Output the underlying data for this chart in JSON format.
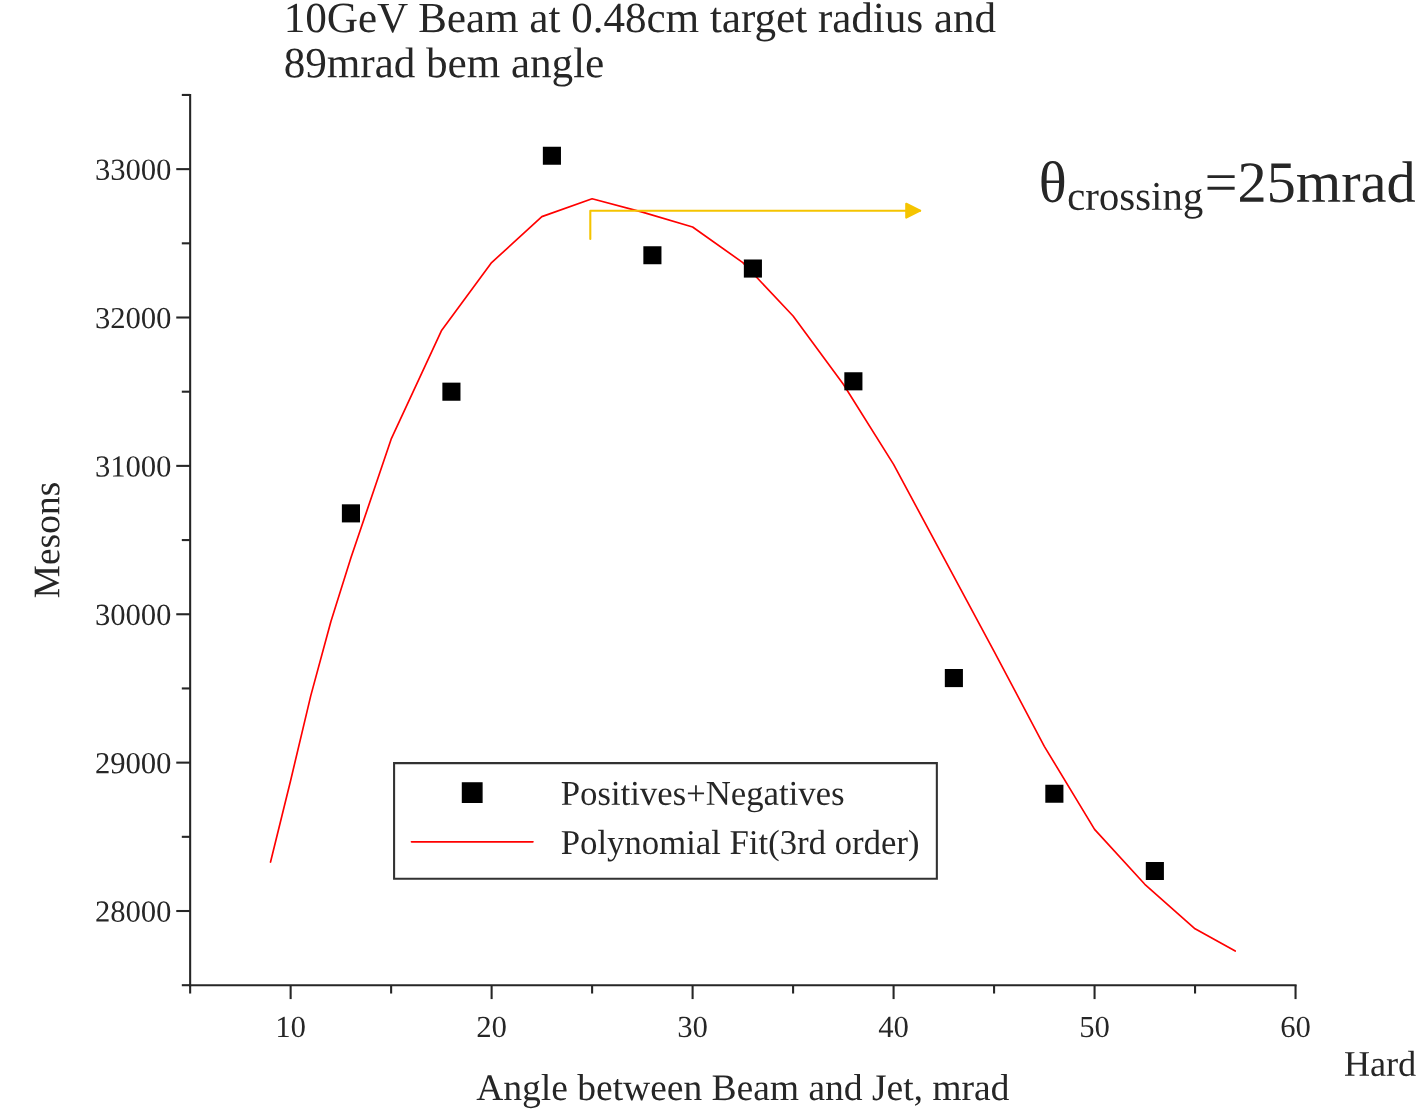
{
  "chart_data": {
    "type": "scatter",
    "title": "10GeV Beam at 0.48cm target radius and\n89mrad bem angle",
    "xlabel": "Angle between Beam and Jet, mrad",
    "ylabel": "Mesons",
    "x": [
      13,
      18,
      23,
      28,
      33,
      38,
      43,
      48,
      53
    ],
    "series": [
      {
        "name": "Positives+Negatives",
        "color": "#000000",
        "marker": "square",
        "values": [
          30680,
          31500,
          33090,
          32420,
          32330,
          31570,
          29570,
          28790,
          28270
        ]
      },
      {
        "name": "Polynomial Fit(3rd order)",
        "type": "line",
        "color": "#ff0000",
        "x": [
          9,
          10,
          11,
          12,
          13,
          15,
          17.5,
          20,
          22.5,
          25,
          27.5,
          30,
          32.5,
          35,
          37.5,
          40,
          42.5,
          45,
          47.5,
          50,
          52.5,
          55,
          57
        ],
        "values": [
          28330,
          28880,
          29450,
          29950,
          30380,
          31180,
          31910,
          32370,
          32680,
          32800,
          32710,
          32610,
          32370,
          32010,
          31550,
          31010,
          30380,
          29750,
          29110,
          28550,
          28180,
          27880,
          27730
        ]
      }
    ],
    "xlim": [
      5,
      60
    ],
    "xticks": [
      10,
      20,
      30,
      40,
      50,
      60
    ],
    "ylim": [
      27500,
      33500
    ],
    "yticks": [
      28000,
      29000,
      30000,
      31000,
      32000,
      33000
    ],
    "grid": false,
    "legend": "bottom",
    "annotations": [
      "θ$_{crossing}$=25mrad",
      "Hard"
    ]
  }
}
